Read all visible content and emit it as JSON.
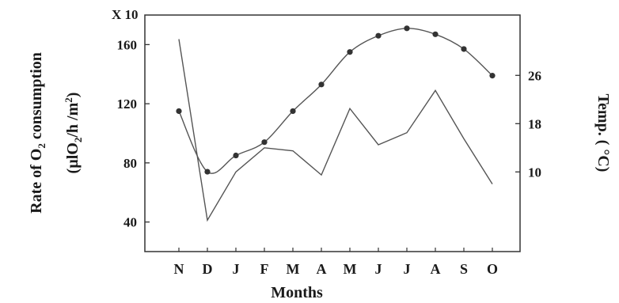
{
  "chart_data": {
    "type": "line",
    "categories": [
      "N",
      "D",
      "J",
      "F",
      "M",
      "A",
      "M",
      "J",
      "J",
      "A",
      "S",
      "O"
    ],
    "xlabel": "Months",
    "ylabel_left_line1": "Rate of O",
    "ylabel_left_sub": "2",
    "ylabel_left_line1_end": " consumption",
    "ylabel_left_line2_a": "(µlO",
    "ylabel_left_line2_sub": "2",
    "ylabel_left_line2_b": "/h /m",
    "ylabel_left_line2_sup": "2",
    "ylabel_left_line2_c": ")",
    "ylabel_right": "Temp. ( °C)",
    "y_multiplier": "X 10",
    "y_left_ticks": [
      40,
      80,
      120,
      160
    ],
    "y_left_tick_labels": [
      "40",
      "80",
      "120",
      "160"
    ],
    "y_left_lim": [
      20,
      180
    ],
    "y_right_ticks": [
      10,
      18,
      26
    ],
    "y_right_tick_labels": [
      "10",
      "18",
      "26"
    ],
    "y_right_lim": [
      -3.2,
      36
    ],
    "series": [
      {
        "axis": "left",
        "marker": "circle",
        "smooth": true,
        "values": [
          115,
          74,
          85,
          94,
          115,
          133,
          155,
          166,
          171,
          167,
          157,
          139
        ]
      },
      {
        "axis": "right",
        "marker": "none",
        "smooth": false,
        "values": [
          32,
          2,
          10,
          14,
          13.5,
          9.5,
          20.5,
          14.5,
          16.5,
          23.5,
          15.5,
          8
        ]
      }
    ]
  }
}
